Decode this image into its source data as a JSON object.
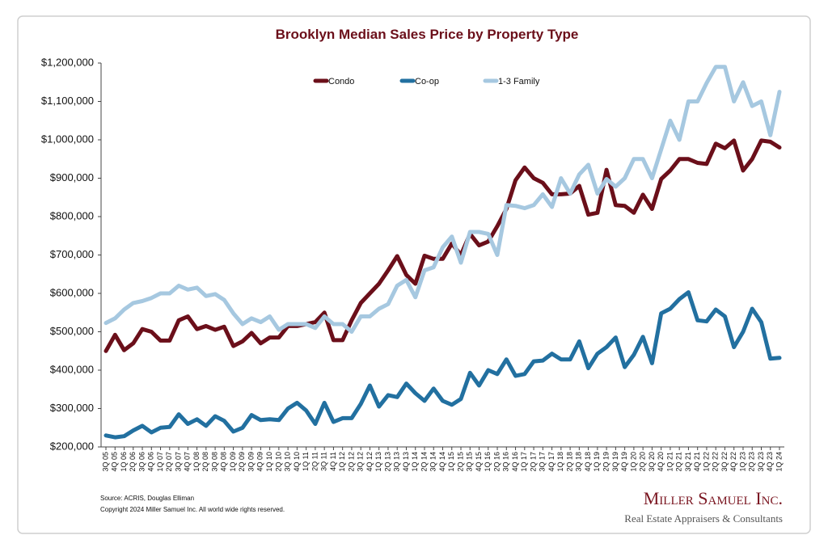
{
  "chart_data": {
    "type": "line",
    "title": "Brooklyn Median Sales Price by Property Type",
    "categories": [
      "3Q 05",
      "4Q 05",
      "1Q 06",
      "2Q 06",
      "3Q 06",
      "4Q 06",
      "1Q 07",
      "2Q 07",
      "3Q 07",
      "4Q 07",
      "1Q 08",
      "2Q 08",
      "3Q 08",
      "4Q 08",
      "1Q 09",
      "2Q 09",
      "3Q 09",
      "4Q 09",
      "1Q 10",
      "2Q 10",
      "3Q 10",
      "4Q 10",
      "1Q 11",
      "2Q 11",
      "3Q 11",
      "4Q 11",
      "1Q 12",
      "2Q 12",
      "3Q 12",
      "4Q 12",
      "1Q 13",
      "2Q 13",
      "3Q 13",
      "4Q 13",
      "1Q 14",
      "2Q 14",
      "3Q 14",
      "4Q 14",
      "1Q 15",
      "2Q 15",
      "3Q 15",
      "4Q 15",
      "1Q 16",
      "2Q 16",
      "3Q 16",
      "4Q 16",
      "1Q 17",
      "2Q 17",
      "3Q 17",
      "4Q 17",
      "1Q 18",
      "2Q 18",
      "3Q 18",
      "4Q 18",
      "1Q 19",
      "2Q 19",
      "3Q 19",
      "4Q 19",
      "1Q 20",
      "2Q 20",
      "3Q 20",
      "4Q 20",
      "1Q 21",
      "2Q 21",
      "3Q 21",
      "4Q 21",
      "1Q 22",
      "2Q 22",
      "3Q 22",
      "4Q 22",
      "1Q 23",
      "2Q 23",
      "3Q 23",
      "4Q 23",
      "1Q 24"
    ],
    "series": [
      {
        "name": "Condo",
        "color": "#6b0f1a",
        "values": [
          450000,
          492000,
          452000,
          470000,
          507000,
          500000,
          477000,
          477000,
          530000,
          540000,
          507000,
          515000,
          505000,
          513000,
          463000,
          475000,
          497000,
          470000,
          485000,
          485000,
          515000,
          515000,
          520000,
          525000,
          550000,
          478000,
          478000,
          530000,
          575000,
          600000,
          625000,
          660000,
          697000,
          648000,
          625000,
          698000,
          690000,
          690000,
          730000,
          700000,
          755000,
          725000,
          735000,
          775000,
          820000,
          895000,
          928000,
          900000,
          888000,
          858000,
          858000,
          860000,
          880000,
          805000,
          810000,
          922000,
          830000,
          828000,
          810000,
          857000,
          820000,
          898000,
          920000,
          950000,
          950000,
          940000,
          937000,
          990000,
          978000,
          998000,
          920000,
          950000,
          998000,
          995000,
          980000
        ]
      },
      {
        "name": "Co-op",
        "color": "#2270a0",
        "values": [
          230000,
          225000,
          228000,
          243000,
          255000,
          238000,
          250000,
          252000,
          285000,
          260000,
          272000,
          255000,
          280000,
          268000,
          240000,
          250000,
          283000,
          270000,
          272000,
          270000,
          300000,
          315000,
          295000,
          260000,
          315000,
          265000,
          275000,
          275000,
          312000,
          360000,
          305000,
          335000,
          330000,
          365000,
          340000,
          320000,
          352000,
          320000,
          310000,
          325000,
          393000,
          360000,
          400000,
          390000,
          428000,
          385000,
          390000,
          423000,
          425000,
          443000,
          428000,
          428000,
          475000,
          405000,
          443000,
          460000,
          485000,
          408000,
          440000,
          487000,
          418000,
          548000,
          560000,
          585000,
          603000,
          530000,
          527000,
          558000,
          540000,
          460000,
          500000,
          560000,
          525000,
          430000,
          432000
        ]
      },
      {
        "name": "1-3 Family",
        "color": "#a6c8e0",
        "values": [
          523000,
          535000,
          558000,
          575000,
          580000,
          588000,
          600000,
          600000,
          620000,
          610000,
          615000,
          593000,
          598000,
          583000,
          548000,
          520000,
          535000,
          525000,
          540000,
          505000,
          520000,
          520000,
          520000,
          510000,
          540000,
          520000,
          520000,
          500000,
          540000,
          540000,
          560000,
          572000,
          620000,
          635000,
          590000,
          660000,
          668000,
          720000,
          748000,
          680000,
          760000,
          760000,
          755000,
          700000,
          830000,
          828000,
          822000,
          830000,
          858000,
          825000,
          900000,
          860000,
          910000,
          935000,
          860000,
          898000,
          878000,
          900000,
          950000,
          950000,
          900000,
          975000,
          1050000,
          1000000,
          1100000,
          1100000,
          1148000,
          1190000,
          1190000,
          1100000,
          1150000,
          1088000,
          1100000,
          1012000,
          1125000
        ]
      }
    ],
    "ylim": [
      200000,
      1200000
    ],
    "yticks": [
      {
        "value": 200000,
        "label": "$200,000"
      },
      {
        "value": 300000,
        "label": "$300,000"
      },
      {
        "value": 400000,
        "label": "$400,000"
      },
      {
        "value": 500000,
        "label": "$500,000"
      },
      {
        "value": 600000,
        "label": "$600,000"
      },
      {
        "value": 700000,
        "label": "$700,000"
      },
      {
        "value": 800000,
        "label": "$800,000"
      },
      {
        "value": 900000,
        "label": "$900,000"
      },
      {
        "value": 1000000,
        "label": "$1,000,000"
      },
      {
        "value": 1100000,
        "label": "$1,100,000"
      },
      {
        "value": 1200000,
        "label": "$1,200,000"
      }
    ],
    "grid": false
  },
  "footer": {
    "source": "Source: ACRIS, Douglas Elliman",
    "copyright": "Copyright 2024 Miller Samuel Inc.  All world wide rights reserved.",
    "logo_name": "Miller Samuel Inc.",
    "logo_tagline": "Real Estate Appraisers & Consultants"
  }
}
